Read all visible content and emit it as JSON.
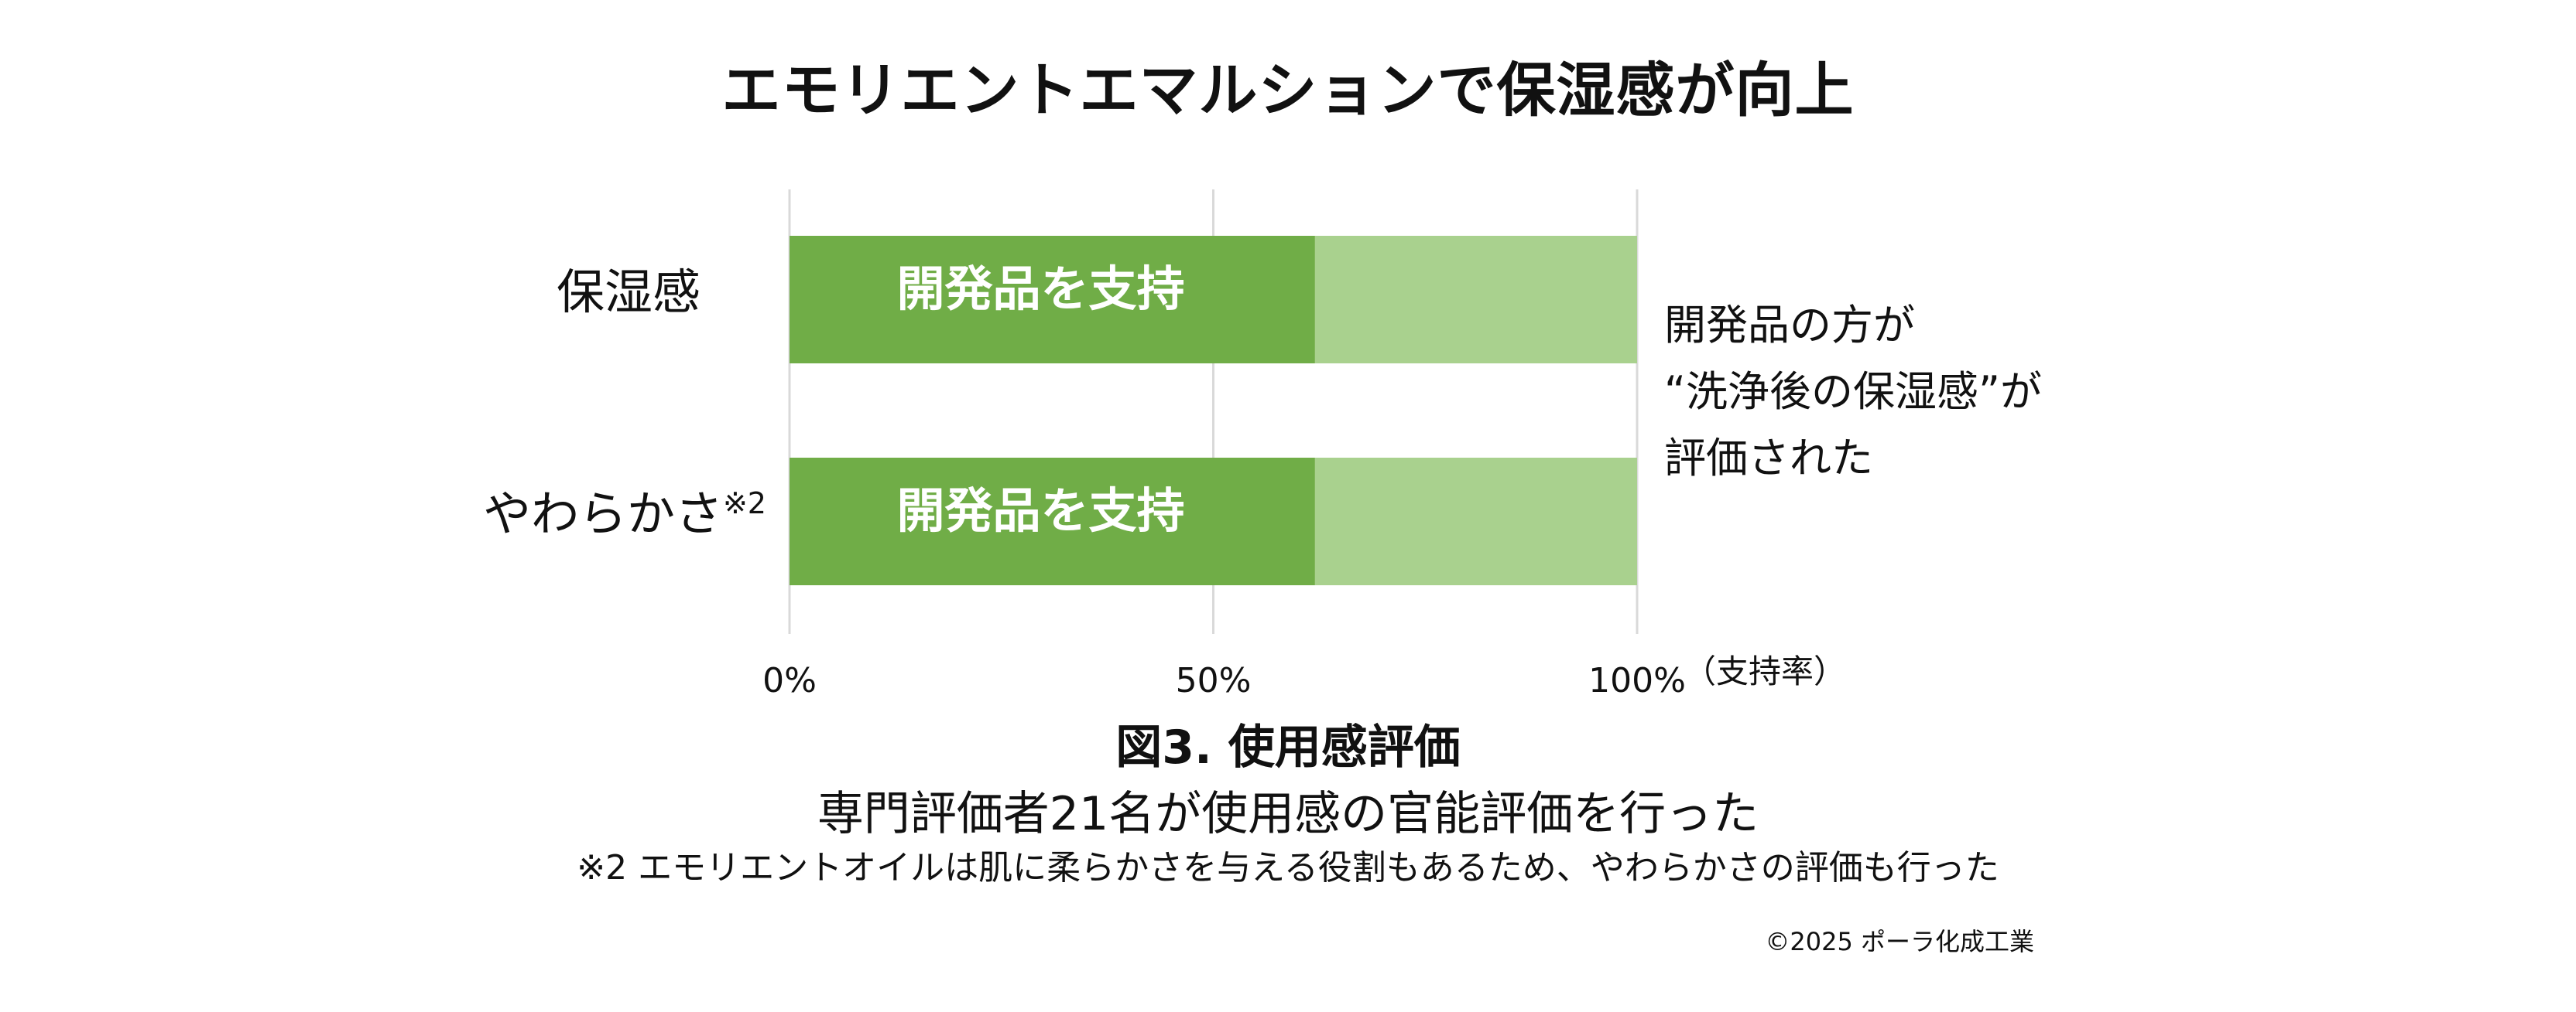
{
  "title": "エモリエントエマルションで保湿感が向上",
  "chart_data": {
    "type": "bar",
    "orientation": "horizontal",
    "stacked": true,
    "categories": [
      "保湿感",
      "やわらかさ"
    ],
    "category_notes": [
      "",
      "※2"
    ],
    "series": [
      {
        "values": [
          62,
          62
        ],
        "color": "#70ad47",
        "labels": [
          "開発品を支持",
          "開発品を支持"
        ]
      },
      {
        "values": [
          38,
          38
        ],
        "color": "#a9d18e"
      }
    ],
    "x_ticks": [
      "0%",
      "50%",
      "100%"
    ],
    "xlim": [
      0,
      100
    ],
    "x_unit_label": "（支持率）",
    "grid": true
  },
  "annotation": {
    "lines": [
      "開発品の方が",
      "“洗浄後の保湿感”が",
      "評価された"
    ]
  },
  "caption": {
    "figure_title": "図3. 使用感評価",
    "description": "専門評価者21名が使用感の官能評価を行った",
    "note": "※2 エモリエントオイルは肌に柔らかさを与える役割もあるため、やわらかさの評価も行った"
  },
  "copyright": "©2025 ポーラ化成工業"
}
